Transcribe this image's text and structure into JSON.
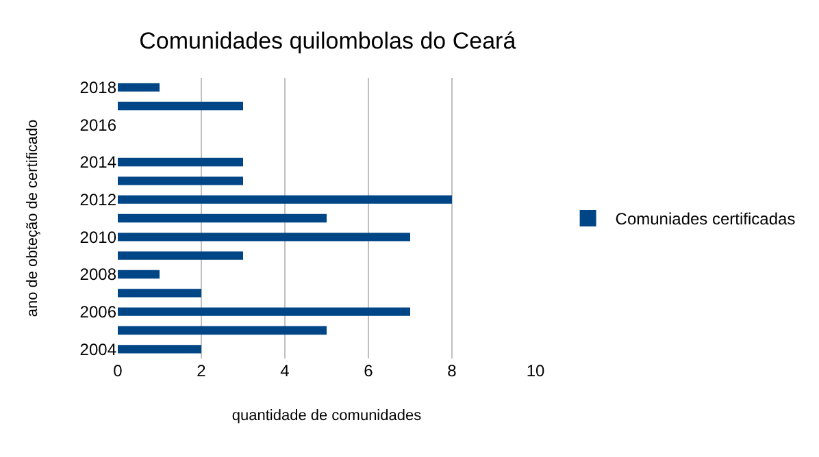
{
  "chart_data": {
    "type": "bar",
    "orientation": "horizontal",
    "title": "Comunidades quilombolas do Ceará",
    "xlabel": "quantidade de comunidades",
    "ylabel": "ano de obteção de certificado",
    "categories": [
      "2018",
      null,
      "2016",
      null,
      "2014",
      null,
      "2012",
      null,
      "2010",
      null,
      "2008",
      null,
      "2006",
      null,
      "2004"
    ],
    "series": [
      {
        "name": "Comuniades certificadas",
        "color": "#004586",
        "values": [
          1,
          3,
          0,
          0,
          3,
          3,
          8,
          5,
          7,
          3,
          1,
          2,
          7,
          5,
          2
        ]
      }
    ],
    "xlim": [
      0,
      10
    ],
    "xticks": [
      0,
      2,
      4,
      6,
      8,
      10
    ],
    "grid": "x",
    "legend": "right"
  }
}
